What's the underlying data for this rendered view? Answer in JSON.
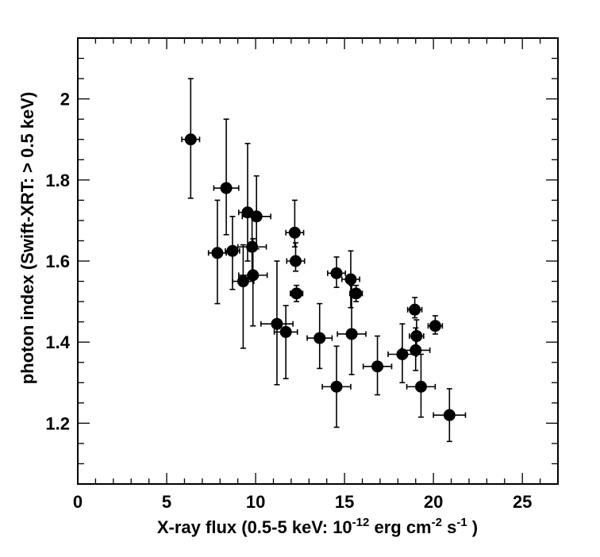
{
  "chart_data": {
    "type": "scatter",
    "xlabel": "X-ray flux (0.5-5 keV: 10^-12 erg cm^-2 s^-1 )",
    "xlabel_parts": {
      "prefix": "X-ray flux (0.5-5 keV: 10",
      "exp1": "-12",
      "mid1": " erg cm",
      "exp2": "-2",
      "mid2": " s",
      "exp3": "-1",
      "suffix": " )"
    },
    "ylabel": "photon index (Swift-XRT: > 0.5 keV)",
    "xlim": [
      0,
      27
    ],
    "ylim": [
      1.05,
      2.15
    ],
    "x_ticks": [
      0,
      5,
      10,
      15,
      20,
      25
    ],
    "x_tick_labels": [
      "0",
      "5",
      "10",
      "15",
      "20",
      "25"
    ],
    "y_ticks": [
      1.2,
      1.4,
      1.6,
      1.8,
      2.0
    ],
    "y_tick_labels": [
      "1.2",
      "1.4",
      "1.6",
      "1.8",
      "2"
    ],
    "marker_color": "#000000",
    "grid": false,
    "legend": "none",
    "points": [
      {
        "x": 6.35,
        "y": 1.9,
        "xerr": 0.5,
        "yerr": [
          0.145,
          0.15
        ]
      },
      {
        "x": 7.85,
        "y": 1.62,
        "xerr": 0.5,
        "yerr": [
          0.125,
          0.13
        ]
      },
      {
        "x": 8.35,
        "y": 1.78,
        "xerr": 0.7,
        "yerr": [
          0.115,
          0.17
        ]
      },
      {
        "x": 8.7,
        "y": 1.625,
        "xerr": 0.4,
        "yerr": [
          0.095,
          0.085
        ]
      },
      {
        "x": 9.3,
        "y": 1.55,
        "xerr": 0.6,
        "yerr": [
          0.165,
          0.09
        ]
      },
      {
        "x": 9.55,
        "y": 1.72,
        "xerr": 0.5,
        "yerr": [
          0.12,
          0.17
        ]
      },
      {
        "x": 9.8,
        "y": 1.635,
        "xerr": 0.8,
        "yerr": [
          0.07,
          0.08
        ]
      },
      {
        "x": 9.85,
        "y": 1.565,
        "xerr": 0.8,
        "yerr": [
          0.125,
          0.09
        ]
      },
      {
        "x": 10.05,
        "y": 1.71,
        "xerr": 0.8,
        "yerr": [
          0.08,
          0.1
        ]
      },
      {
        "x": 11.2,
        "y": 1.445,
        "xerr": 0.9,
        "yerr": [
          0.15,
          0.155
        ]
      },
      {
        "x": 11.7,
        "y": 1.425,
        "xerr": 0.65,
        "yerr": [
          0.115,
          0.065
        ]
      },
      {
        "x": 12.2,
        "y": 1.67,
        "xerr": 0.5,
        "yerr": [
          0.035,
          0.08
        ]
      },
      {
        "x": 12.25,
        "y": 1.6,
        "xerr": 0.5,
        "yerr": [
          0.025,
          0.045
        ]
      },
      {
        "x": 12.3,
        "y": 1.52,
        "xerr": 0.35,
        "yerr": [
          0.02,
          0.02
        ]
      },
      {
        "x": 13.6,
        "y": 1.41,
        "xerr": 0.7,
        "yerr": [
          0.075,
          0.085
        ]
      },
      {
        "x": 14.55,
        "y": 1.57,
        "xerr": 0.5,
        "yerr": [
          0.035,
          0.04
        ]
      },
      {
        "x": 14.55,
        "y": 1.29,
        "xerr": 0.8,
        "yerr": [
          0.1,
          0.1
        ]
      },
      {
        "x": 15.35,
        "y": 1.555,
        "xerr": 0.5,
        "yerr": [
          0.07,
          0.07
        ]
      },
      {
        "x": 15.4,
        "y": 1.42,
        "xerr": 0.8,
        "yerr": [
          0.1,
          0.12
        ]
      },
      {
        "x": 15.65,
        "y": 1.52,
        "xerr": 0.35,
        "yerr": [
          0.02,
          0.02
        ]
      },
      {
        "x": 16.85,
        "y": 1.34,
        "xerr": 0.8,
        "yerr": [
          0.07,
          0.075
        ]
      },
      {
        "x": 18.25,
        "y": 1.37,
        "xerr": 0.8,
        "yerr": [
          0.07,
          0.075
        ]
      },
      {
        "x": 18.95,
        "y": 1.48,
        "xerr": 0.4,
        "yerr": [
          0.02,
          0.03
        ]
      },
      {
        "x": 19.0,
        "y": 1.38,
        "xerr": 0.8,
        "yerr": [
          0.05,
          0.055
        ]
      },
      {
        "x": 19.05,
        "y": 1.415,
        "xerr": 0.4,
        "yerr": [
          0.03,
          0.04
        ]
      },
      {
        "x": 19.3,
        "y": 1.29,
        "xerr": 0.8,
        "yerr": [
          0.075,
          0.08
        ]
      },
      {
        "x": 20.1,
        "y": 1.44,
        "xerr": 0.4,
        "yerr": [
          0.02,
          0.025
        ]
      },
      {
        "x": 20.9,
        "y": 1.22,
        "xerr": 0.9,
        "yerr": [
          0.065,
          0.065
        ]
      }
    ]
  }
}
